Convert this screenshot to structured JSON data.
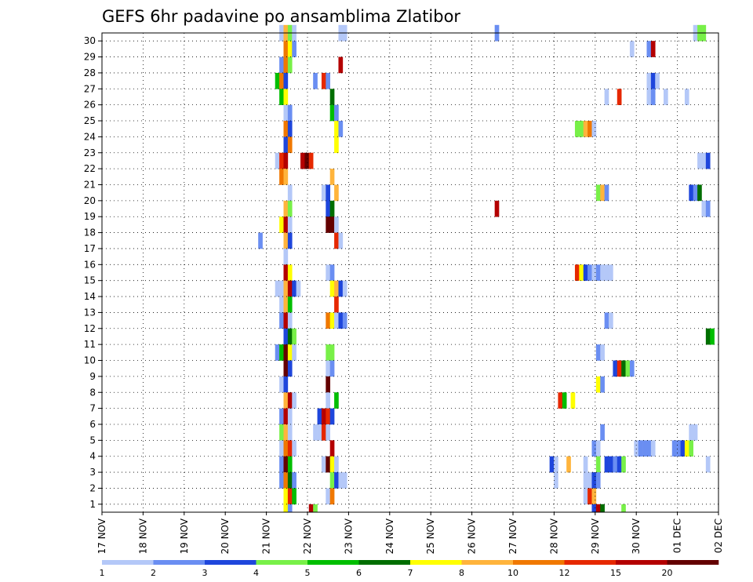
{
  "chart_data": {
    "type": "heatmap",
    "title": "GEFS 6hr padavine po ansamblima Zlatibor",
    "y_ticks": [
      "30",
      "29",
      "28",
      "27",
      "26",
      "25",
      "24",
      "23",
      "22",
      "21",
      "20",
      "19",
      "18",
      "17",
      "16",
      "15",
      "14",
      "13",
      "12",
      "11",
      "10",
      "9",
      "8",
      "7",
      "6",
      "5",
      "4",
      "3",
      "2",
      "1"
    ],
    "x_ticks": [
      "17 NOV",
      "18 NOV",
      "19 NOV",
      "20 NOV",
      "21 NOV",
      "22 NOV",
      "23 NOV",
      "24 NOV",
      "25 NOV",
      "26 NOV",
      "27 NOV",
      "28 NOV",
      "29 NOV",
      "30 NOV",
      "01 DEC",
      "02 DEC"
    ],
    "grid": true,
    "colorbar": {
      "colors": [
        "#b4c8f8",
        "#6a8ef2",
        "#1e46dc",
        "#78f048",
        "#00be00",
        "#006e00",
        "#ffff00",
        "#ffb43c",
        "#f07800",
        "#e62800",
        "#b40000",
        "#640000"
      ],
      "labels": [
        "1",
        "2",
        "3",
        "4",
        "5",
        "6",
        "7",
        "8",
        "10",
        "12",
        "15",
        "20"
      ]
    },
    "members": [
      {
        "m": 30,
        "c": [
          [
            42,
            1
          ],
          [
            43,
            8
          ],
          [
            44,
            4
          ],
          [
            45,
            1
          ],
          [
            56,
            1
          ],
          [
            57,
            1
          ],
          [
            93,
            2
          ],
          [
            140,
            1
          ],
          [
            141,
            4
          ],
          [
            142,
            4
          ]
        ]
      },
      {
        "m": 29,
        "c": [
          [
            43,
            9
          ],
          [
            44,
            7
          ],
          [
            45,
            2
          ],
          [
            125,
            1
          ],
          [
            129,
            2
          ],
          [
            130,
            11
          ]
        ]
      },
      {
        "m": 28,
        "c": [
          [
            42,
            2
          ],
          [
            43,
            9
          ],
          [
            44,
            4
          ],
          [
            56,
            11
          ]
        ]
      },
      {
        "m": 27,
        "c": [
          [
            41,
            5
          ],
          [
            42,
            9
          ],
          [
            43,
            3
          ],
          [
            50,
            2
          ],
          [
            52,
            10
          ],
          [
            53,
            2
          ],
          [
            129,
            1
          ],
          [
            130,
            3
          ],
          [
            131,
            1
          ]
        ]
      },
      {
        "m": 26,
        "c": [
          [
            42,
            5
          ],
          [
            43,
            7
          ],
          [
            54,
            6
          ],
          [
            119,
            1
          ],
          [
            122,
            10
          ],
          [
            129,
            1
          ],
          [
            130,
            2
          ],
          [
            133,
            1
          ],
          [
            138,
            1
          ]
        ]
      },
      {
        "m": 25,
        "c": [
          [
            43,
            1
          ],
          [
            44,
            2
          ],
          [
            54,
            5
          ],
          [
            55,
            2
          ]
        ]
      },
      {
        "m": 24,
        "c": [
          [
            43,
            9
          ],
          [
            44,
            3
          ],
          [
            55,
            7
          ],
          [
            56,
            2
          ],
          [
            112,
            4
          ],
          [
            113,
            4
          ],
          [
            114,
            8
          ],
          [
            115,
            9
          ],
          [
            116,
            1
          ]
        ]
      },
      {
        "m": 23,
        "c": [
          [
            43,
            3
          ],
          [
            44,
            9
          ],
          [
            55,
            7
          ]
        ]
      },
      {
        "m": 22,
        "c": [
          [
            41,
            1
          ],
          [
            42,
            10
          ],
          [
            43,
            11
          ],
          [
            47,
            11
          ],
          [
            48,
            12
          ],
          [
            49,
            10
          ],
          [
            141,
            1
          ],
          [
            142,
            1
          ],
          [
            143,
            3
          ]
        ]
      },
      {
        "m": 21,
        "c": [
          [
            42,
            9
          ],
          [
            43,
            8
          ],
          [
            54,
            8
          ]
        ]
      },
      {
        "m": 20,
        "c": [
          [
            44,
            1
          ],
          [
            52,
            1
          ],
          [
            53,
            3
          ],
          [
            55,
            8
          ],
          [
            117,
            4
          ],
          [
            118,
            8
          ],
          [
            119,
            2
          ],
          [
            139,
            3
          ],
          [
            140,
            2
          ],
          [
            141,
            6
          ]
        ]
      },
      {
        "m": 19,
        "c": [
          [
            43,
            8
          ],
          [
            44,
            4
          ],
          [
            53,
            3
          ],
          [
            54,
            6
          ],
          [
            93,
            11
          ],
          [
            142,
            1
          ],
          [
            143,
            2
          ]
        ]
      },
      {
        "m": 18,
        "c": [
          [
            42,
            7
          ],
          [
            43,
            11
          ],
          [
            44,
            1
          ],
          [
            53,
            12
          ],
          [
            54,
            12
          ],
          [
            55,
            1
          ]
        ]
      },
      {
        "m": 17,
        "c": [
          [
            37,
            2
          ],
          [
            43,
            8
          ],
          [
            44,
            3
          ],
          [
            55,
            10
          ],
          [
            56,
            1
          ]
        ]
      },
      {
        "m": 16,
        "c": [
          [
            43,
            1
          ]
        ]
      },
      {
        "m": 15,
        "c": [
          [
            43,
            11
          ],
          [
            44,
            7
          ],
          [
            53,
            1
          ],
          [
            54,
            2
          ],
          [
            112,
            10
          ],
          [
            113,
            7
          ],
          [
            114,
            3
          ],
          [
            115,
            2
          ],
          [
            116,
            1
          ],
          [
            117,
            2
          ],
          [
            118,
            1
          ],
          [
            119,
            1
          ],
          [
            120,
            1
          ]
        ]
      },
      {
        "m": 14,
        "c": [
          [
            41,
            1
          ],
          [
            42,
            1
          ],
          [
            43,
            8
          ],
          [
            44,
            11
          ],
          [
            45,
            3
          ],
          [
            46,
            1
          ],
          [
            54,
            7
          ],
          [
            55,
            8
          ],
          [
            56,
            3
          ],
          [
            57,
            1
          ]
        ]
      },
      {
        "m": 13,
        "c": [
          [
            42,
            1
          ],
          [
            43,
            8
          ],
          [
            44,
            5
          ],
          [
            55,
            10
          ]
        ]
      },
      {
        "m": 12,
        "c": [
          [
            42,
            2
          ],
          [
            43,
            11
          ],
          [
            44,
            1
          ],
          [
            53,
            9
          ],
          [
            54,
            7
          ],
          [
            55,
            1
          ],
          [
            56,
            3
          ],
          [
            57,
            2
          ],
          [
            119,
            2
          ],
          [
            120,
            1
          ]
        ]
      },
      {
        "m": 11,
        "c": [
          [
            43,
            3
          ],
          [
            44,
            6
          ],
          [
            45,
            4
          ],
          [
            143,
            6
          ],
          [
            144,
            5
          ]
        ]
      },
      {
        "m": 10,
        "c": [
          [
            41,
            2
          ],
          [
            42,
            5
          ],
          [
            43,
            12
          ],
          [
            44,
            7
          ],
          [
            45,
            1
          ],
          [
            53,
            4
          ],
          [
            54,
            4
          ],
          [
            117,
            2
          ],
          [
            118,
            1
          ]
        ]
      },
      {
        "m": 9,
        "c": [
          [
            43,
            12
          ],
          [
            44,
            3
          ],
          [
            53,
            1
          ],
          [
            54,
            2
          ],
          [
            121,
            3
          ],
          [
            122,
            10
          ],
          [
            123,
            6
          ],
          [
            124,
            4
          ],
          [
            125,
            2
          ]
        ]
      },
      {
        "m": 8,
        "c": [
          [
            42,
            1
          ],
          [
            43,
            3
          ],
          [
            53,
            12
          ],
          [
            117,
            7
          ],
          [
            118,
            2
          ]
        ]
      },
      {
        "m": 7,
        "c": [
          [
            43,
            8
          ],
          [
            44,
            11
          ],
          [
            45,
            1
          ],
          [
            53,
            1
          ],
          [
            55,
            5
          ],
          [
            108,
            10
          ],
          [
            109,
            5
          ],
          [
            111,
            7
          ]
        ]
      },
      {
        "m": 6,
        "c": [
          [
            42,
            2
          ],
          [
            43,
            11
          ],
          [
            44,
            1
          ],
          [
            51,
            3
          ],
          [
            52,
            11
          ],
          [
            53,
            10
          ],
          [
            54,
            3
          ]
        ]
      },
      {
        "m": 5,
        "c": [
          [
            42,
            4
          ],
          [
            43,
            8
          ],
          [
            44,
            1
          ],
          [
            50,
            1
          ],
          [
            51,
            1
          ],
          [
            52,
            10
          ],
          [
            53,
            1
          ],
          [
            118,
            2
          ],
          [
            139,
            1
          ],
          [
            140,
            1
          ]
        ]
      },
      {
        "m": 4,
        "c": [
          [
            42,
            1
          ],
          [
            43,
            9
          ],
          [
            44,
            10
          ],
          [
            45,
            1
          ],
          [
            54,
            11
          ],
          [
            116,
            2
          ],
          [
            117,
            1
          ],
          [
            126,
            1
          ],
          [
            127,
            2
          ],
          [
            128,
            2
          ],
          [
            129,
            2
          ],
          [
            130,
            1
          ],
          [
            135,
            2
          ],
          [
            136,
            2
          ],
          [
            137,
            3
          ],
          [
            138,
            7
          ],
          [
            139,
            4
          ]
        ]
      },
      {
        "m": 3,
        "c": [
          [
            42,
            2
          ],
          [
            43,
            12
          ],
          [
            44,
            5
          ],
          [
            52,
            1
          ],
          [
            53,
            12
          ],
          [
            54,
            7
          ],
          [
            55,
            1
          ],
          [
            106,
            3
          ],
          [
            107,
            1
          ],
          [
            110,
            8
          ],
          [
            114,
            1
          ],
          [
            117,
            4
          ],
          [
            119,
            3
          ],
          [
            120,
            3
          ],
          [
            121,
            2
          ],
          [
            122,
            3
          ],
          [
            123,
            4
          ],
          [
            143,
            1
          ]
        ]
      },
      {
        "m": 2,
        "c": [
          [
            42,
            2
          ],
          [
            43,
            9
          ],
          [
            44,
            6
          ],
          [
            45,
            2
          ],
          [
            54,
            4
          ],
          [
            55,
            3
          ],
          [
            56,
            1
          ],
          [
            57,
            1
          ],
          [
            107,
            1
          ],
          [
            114,
            1
          ],
          [
            115,
            1
          ],
          [
            116,
            3
          ],
          [
            117,
            2
          ]
        ]
      },
      {
        "m": 1,
        "c": [
          [
            43,
            7
          ],
          [
            44,
            10
          ],
          [
            45,
            5
          ],
          [
            53,
            1
          ],
          [
            54,
            9
          ],
          [
            114,
            1
          ],
          [
            115,
            10
          ],
          [
            116,
            8
          ]
        ]
      },
      {
        "m": 0,
        "c": [
          [
            43,
            7
          ],
          [
            44,
            2
          ],
          [
            49,
            11
          ],
          [
            50,
            4
          ],
          [
            116,
            3
          ],
          [
            117,
            11
          ],
          [
            118,
            6
          ],
          [
            123,
            4
          ]
        ]
      }
    ]
  }
}
